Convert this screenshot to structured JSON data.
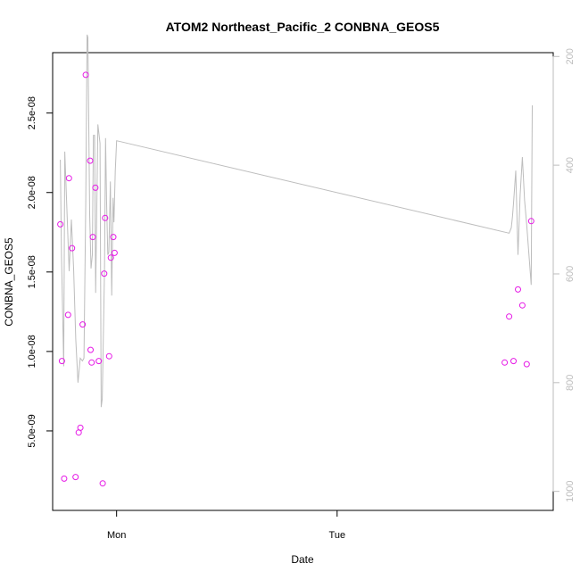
{
  "chart_data": {
    "type": "scatter",
    "title": "ATOM2 Northeast_Pacific_2 CONBNA_GEOS5",
    "xlabel": "Date",
    "ylabel": "CONBNA_GEOS5",
    "x_unit": "days",
    "x_tick_labels": [
      {
        "x": 0.0,
        "label": "Mon"
      },
      {
        "x": 1.0,
        "label": "Tue"
      }
    ],
    "xlim": [
      -0.29,
      1.98
    ],
    "ylim": [
      0.0,
      2.88e-08
    ],
    "y_tick_labels": [
      {
        "y": 5e-09,
        "label": "5.0e-09"
      },
      {
        "y": 1e-08,
        "label": "1.0e-08"
      },
      {
        "y": 1.5e-08,
        "label": "1.5e-08"
      },
      {
        "y": 2e-08,
        "label": "2.0e-08"
      },
      {
        "y": 2.5e-08,
        "label": "2.5e-08"
      }
    ],
    "y2lim": [
      1035,
      193
    ],
    "y2_tick_labels": [
      {
        "y": 200,
        "label": "200"
      },
      {
        "y": 400,
        "label": "400"
      },
      {
        "y": 600,
        "label": "600"
      },
      {
        "y": 800,
        "label": "800"
      },
      {
        "y": 1000,
        "label": "1000"
      }
    ],
    "grid": false,
    "series": [
      {
        "style": "points",
        "color": "#e619e6",
        "axis": "left",
        "x": [
          -0.255,
          -0.248,
          -0.238,
          -0.22,
          -0.216,
          -0.202,
          -0.186,
          -0.172,
          -0.164,
          -0.154,
          -0.14,
          -0.12,
          -0.118,
          -0.113,
          -0.108,
          -0.096,
          -0.081,
          -0.063,
          -0.056,
          -0.052,
          -0.034,
          -0.026,
          -0.015,
          -0.009,
          1.76,
          1.78,
          1.8,
          1.82,
          1.84,
          1.86,
          1.88
        ],
        "y": [
          1.8e-08,
          9.4e-09,
          2e-09,
          1.23e-08,
          2.09e-08,
          1.65e-08,
          2.1e-09,
          4.9e-09,
          5.2e-09,
          1.17e-08,
          2.74e-08,
          2.2e-08,
          1.01e-08,
          9.3e-09,
          1.72e-08,
          2.03e-08,
          9.4e-09,
          1.7e-09,
          1.49e-08,
          1.84e-08,
          9.7e-09,
          1.59e-08,
          1.72e-08,
          1.62e-08,
          9.3e-09,
          1.22e-08,
          9.4e-09,
          1.39e-08,
          1.29e-08,
          9.2e-09,
          1.82e-08
        ]
      },
      {
        "style": "line",
        "color": "#bdbdbd",
        "axis": "right",
        "x": [
          -0.255,
          -0.25,
          -0.24,
          -0.235,
          -0.215,
          -0.205,
          -0.195,
          -0.185,
          -0.175,
          -0.165,
          -0.155,
          -0.148,
          -0.14,
          -0.134,
          -0.13,
          -0.122,
          -0.116,
          -0.11,
          -0.105,
          -0.1,
          -0.095,
          -0.085,
          -0.075,
          -0.07,
          -0.065,
          -0.055,
          -0.05,
          -0.045,
          -0.04,
          -0.035,
          -0.028,
          -0.022,
          -0.016,
          -0.012,
          -0.006,
          0.0,
          1.78,
          1.79,
          1.795,
          1.8,
          1.81,
          1.82,
          1.83,
          1.84,
          1.85,
          1.86,
          1.87,
          1.88,
          1.885
        ],
        "y": [
          390,
          565,
          770,
          375,
          595,
          500,
          590,
          720,
          800,
          755,
          760,
          755,
          470,
          160,
          165,
          490,
          590,
          565,
          345,
          345,
          635,
          325,
          360,
          845,
          830,
          595,
          350,
          470,
          565,
          560,
          430,
          640,
          460,
          505,
          410,
          355,
          525,
          515,
          495,
          470,
          410,
          565,
          455,
          385,
          465,
          510,
          565,
          620,
          290
        ]
      }
    ]
  }
}
